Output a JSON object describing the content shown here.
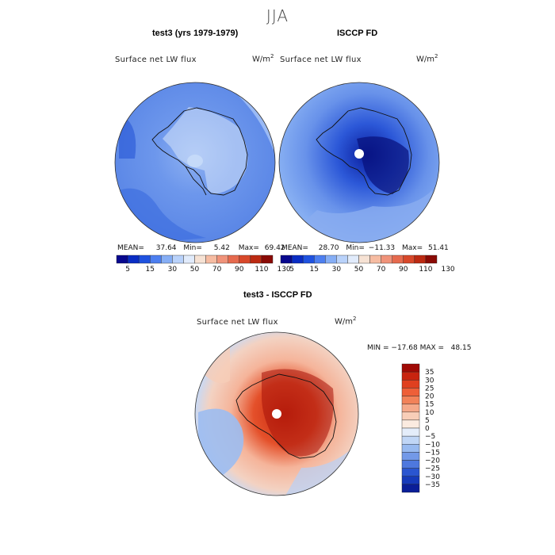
{
  "season": "JJA",
  "panels": [
    {
      "title": "test3 (yrs 1979-1979)",
      "variable": "Surface net LW flux",
      "units": "W/m",
      "units_sup": "2",
      "mean_label": "MEAN=",
      "mean": "37.64",
      "min_label": "Min=",
      "min": "5.42",
      "max_label": "Max=",
      "max": "69.42"
    },
    {
      "title": "ISCCP FD",
      "variable": "Surface net LW flux",
      "units": "W/m",
      "units_sup": "2",
      "mean_label": "MEAN=",
      "mean": "28.70",
      "min_label": "Min=",
      "min": "−11.33",
      "max_label": "Max=",
      "max": "51.41"
    },
    {
      "title": "test3 - ISCCP FD",
      "variable": "Surface net LW flux",
      "units": "W/m",
      "units_sup": "2",
      "minmax": "MIN = −17.68 MAX =   48.15"
    }
  ],
  "colorbar_top": {
    "labels": [
      "5",
      "15",
      "30",
      "50",
      "70",
      "90",
      "110",
      "130"
    ],
    "colors": [
      "#08088e",
      "#0a2dc4",
      "#1f52e0",
      "#4d7ff0",
      "#86aef5",
      "#b9d2fa",
      "#e1ebfb",
      "#f6e2d4",
      "#f6bca2",
      "#f0937a",
      "#e66a4e",
      "#d8482a",
      "#bc2a12",
      "#8a0a05"
    ]
  },
  "colorbar_diff": {
    "labels": [
      "35",
      "30",
      "25",
      "20",
      "15",
      "10",
      "5",
      "0",
      "−5",
      "−10",
      "−15",
      "−20",
      "−25",
      "−30",
      "−35"
    ],
    "colors": [
      "#a00a05",
      "#c8240f",
      "#e0401f",
      "#ee5f38",
      "#f28259",
      "#f5a98a",
      "#f8ceb8",
      "#fbebe0",
      "#e4edfa",
      "#c0d6f6",
      "#98baf0",
      "#7399e8",
      "#4e78de",
      "#2a55d0",
      "#163aba",
      "#0a1e98"
    ]
  },
  "chart_data": [
    {
      "type": "heatmap",
      "title": "test3 (yrs 1979-1979)",
      "projection": "south polar stereographic",
      "variable": "Surface net LW flux",
      "units": "W/m2",
      "stats": {
        "mean": 37.64,
        "min": 5.42,
        "max": 69.42
      },
      "levels": [
        5,
        10,
        15,
        20,
        25,
        30,
        40,
        50,
        60,
        70,
        80,
        90,
        100,
        110,
        120,
        130
      ]
    },
    {
      "type": "heatmap",
      "title": "ISCCP FD",
      "projection": "south polar stereographic",
      "variable": "Surface net LW flux",
      "units": "W/m2",
      "stats": {
        "mean": 28.7,
        "min": -11.33,
        "max": 51.41
      },
      "levels": [
        5,
        10,
        15,
        20,
        25,
        30,
        40,
        50,
        60,
        70,
        80,
        90,
        100,
        110,
        120,
        130
      ]
    },
    {
      "type": "heatmap",
      "title": "test3 - ISCCP FD",
      "projection": "south polar stereographic",
      "variable": "Surface net LW flux",
      "units": "W/m2",
      "stats": {
        "min": -17.68,
        "max": 48.15
      },
      "levels": [
        -35,
        -30,
        -25,
        -20,
        -15,
        -10,
        -5,
        0,
        5,
        10,
        15,
        20,
        25,
        30,
        35
      ]
    }
  ]
}
